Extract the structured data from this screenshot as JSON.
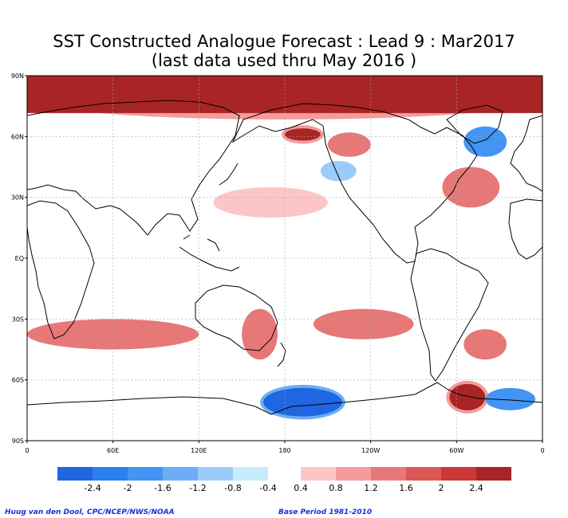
{
  "title": {
    "line1": "SST Constructed Analogue Forecast : Lead 9 : Mar2017",
    "line2": "(last data used thru May 2016 )"
  },
  "map": {
    "lat_labels": [
      "90N",
      "60N",
      "30N",
      "EQ",
      "30S",
      "60S",
      "90S"
    ],
    "lon_labels": [
      "0",
      "60E",
      "120E",
      "180",
      "120W",
      "60W",
      "0"
    ],
    "lat_values": [
      90,
      60,
      30,
      0,
      -30,
      -60,
      -90
    ],
    "lon_values": [
      0,
      60,
      120,
      180,
      240,
      300,
      360
    ],
    "anomaly_regions": [
      {
        "id": "arctic-warm",
        "class": "warm-strong",
        "lon": [
          0,
          360
        ],
        "lat": [
          70,
          88
        ]
      },
      {
        "id": "north-pacific-cool",
        "class": "cool-light",
        "lon": [
          205,
          230
        ],
        "lat": [
          38,
          48
        ]
      },
      {
        "id": "gulf-of-alaska-warm",
        "class": "warm-mid",
        "lon": [
          210,
          240
        ],
        "lat": [
          50,
          62
        ]
      },
      {
        "id": "bering-warm",
        "class": "warm-strong",
        "lon": [
          180,
          205
        ],
        "lat": [
          58,
          64
        ]
      },
      {
        "id": "subtropical-north-pacific-warm",
        "class": "warm-light",
        "lon": [
          130,
          210
        ],
        "lat": [
          20,
          35
        ]
      },
      {
        "id": "north-atlantic-warm",
        "class": "warm-mid",
        "lon": [
          290,
          330
        ],
        "lat": [
          25,
          45
        ]
      },
      {
        "id": "labrador-cool",
        "class": "cool-mid",
        "lon": [
          305,
          335
        ],
        "lat": [
          50,
          65
        ]
      },
      {
        "id": "south-indian-warm",
        "class": "warm-mid",
        "lon": [
          0,
          120
        ],
        "lat": [
          -45,
          -30
        ]
      },
      {
        "id": "tasman-warm",
        "class": "warm-mid",
        "lon": [
          150,
          175
        ],
        "lat": [
          -50,
          -25
        ]
      },
      {
        "id": "south-pacific-warm",
        "class": "warm-mid",
        "lon": [
          200,
          270
        ],
        "lat": [
          -40,
          -25
        ]
      },
      {
        "id": "south-atlantic-warm",
        "class": "warm-mid",
        "lon": [
          305,
          335
        ],
        "lat": [
          -50,
          -35
        ]
      },
      {
        "id": "weddell-warm",
        "class": "warm-strong",
        "lon": [
          295,
          320
        ],
        "lat": [
          -75,
          -62
        ]
      },
      {
        "id": "ross-sea-cool",
        "class": "cool-strong",
        "lon": [
          165,
          220
        ],
        "lat": [
          -78,
          -64
        ]
      },
      {
        "id": "east-antarctic-cool",
        "class": "cool-mid",
        "lon": [
          320,
          355
        ],
        "lat": [
          -75,
          -64
        ]
      }
    ]
  },
  "colorbar": {
    "cool_colors": [
      "#1f66e0",
      "#2c80ed",
      "#4494f3",
      "#6dadf6",
      "#9bcbf8",
      "#c6ecfb"
    ],
    "warm_colors": [
      "#fdc6c6",
      "#f49b9b",
      "#e77878",
      "#dd5656",
      "#cc3838",
      "#a92424"
    ],
    "labels": [
      "-2.4",
      "-2",
      "-1.6",
      "-1.2",
      "-0.8",
      "-0.4",
      "0.4",
      "0.8",
      "1.2",
      "1.6",
      "2",
      "2.4"
    ]
  },
  "credits": {
    "left": "Huug van den Dool, CPC/NCEP/NWS/NOAA",
    "right": "Base Period 1981-2010"
  }
}
